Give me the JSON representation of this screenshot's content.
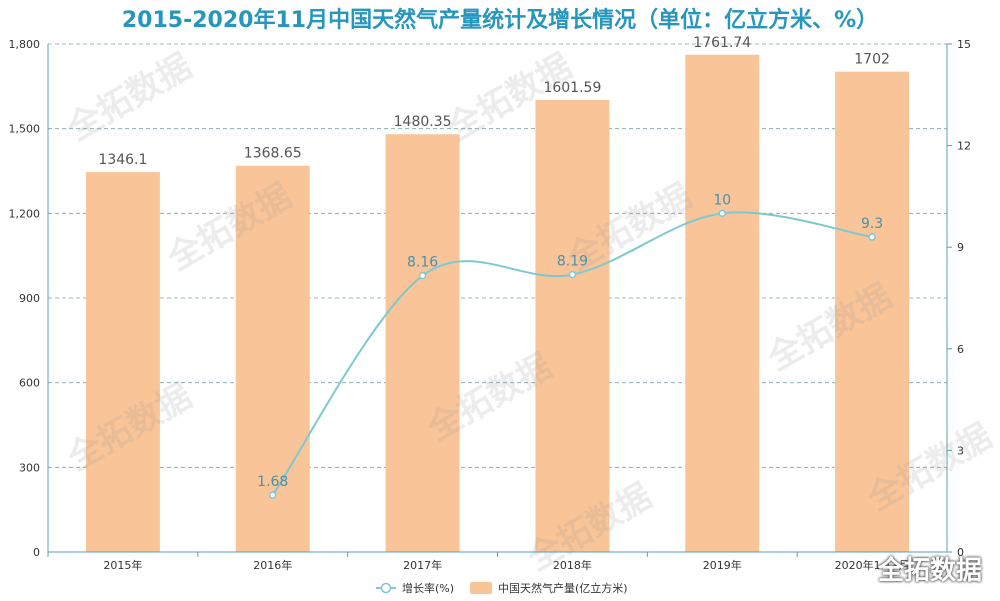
{
  "title": "2015-2020年11月中国天然气产量统计及增长情况（单位：亿立方米、%）",
  "watermark": "全拓数据",
  "brand": "全拓数据",
  "colors": {
    "bar": "#f9c598",
    "line": "#7ec8d3",
    "axis": "#5aa0b0",
    "grid": "#7aa3a8",
    "label_bar": "#555555",
    "label_line": "#4a90a8"
  },
  "chart_data": {
    "type": "bar",
    "categories": [
      "2015年",
      "2016年",
      "2017年",
      "2018年",
      "2019年",
      "2020年1-11月"
    ],
    "series": [
      {
        "name": "中国天然气产量(亿立方米)",
        "type": "bar",
        "axis": "left",
        "values": [
          1346.1,
          1368.65,
          1480.35,
          1601.59,
          1761.74,
          1702
        ]
      },
      {
        "name": "增长率(%)",
        "type": "line",
        "axis": "right",
        "values": [
          null,
          1.68,
          8.16,
          8.19,
          10,
          9.3
        ]
      }
    ],
    "yleft": {
      "min": 0,
      "max": 1800,
      "ticks": [
        "0",
        "300",
        "600",
        "900",
        "1,200",
        "1,500",
        "1,800"
      ]
    },
    "yright": {
      "min": 0,
      "max": 15,
      "ticks": [
        "0",
        "3",
        "6",
        "9",
        "12",
        "15"
      ]
    },
    "legend": [
      "增长率(%)",
      "中国天然气产量(亿立方米)"
    ],
    "legend_position": "bottom-center",
    "grid": true
  }
}
